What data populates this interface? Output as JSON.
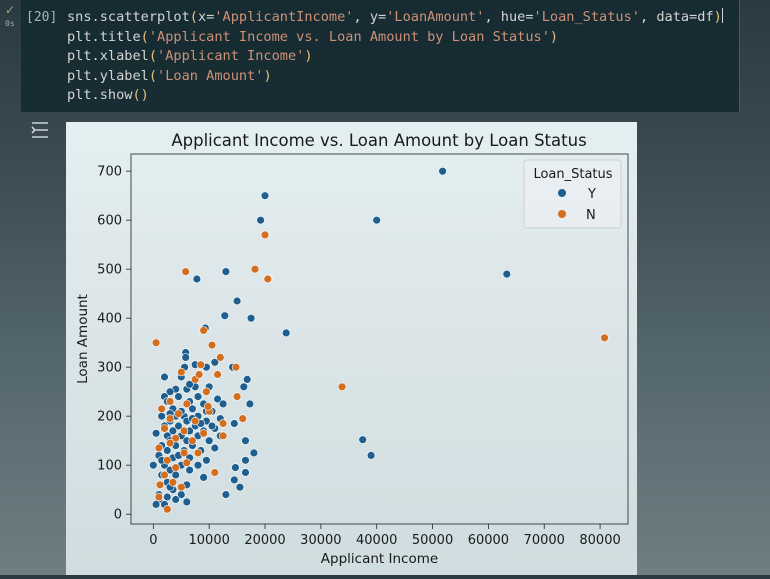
{
  "cell": {
    "exec_count": "[20]",
    "run_status_icon": "check-icon",
    "run_time": "0s",
    "code": {
      "line1": {
        "fn": "sns.scatterplot",
        "a1": "x=",
        "v1": "'ApplicantIncome'",
        "a2": ", y=",
        "v2": "'LoanAmount'",
        "a3": ", hue=",
        "v3": "'Loan_Status'",
        "a4": ", data=df"
      },
      "line2": {
        "fn": "plt.title",
        "v": "'Applicant Income vs. Loan Amount by Loan Status'"
      },
      "line3": {
        "fn": "plt.xlabel",
        "v": "'Applicant Income'"
      },
      "line4": {
        "fn": "plt.ylabel",
        "v": "'Loan Amount'"
      },
      "line5": {
        "fn": "plt.show",
        "v": ""
      }
    }
  },
  "output_toggle_icon": "output-toggle-icon",
  "colors": {
    "Y": "#1f5f8f",
    "N": "#d36e1f"
  },
  "chart_data": {
    "type": "scatter",
    "title": "Applicant Income vs. Loan Amount by Loan Status",
    "xlabel": "Applicant Income",
    "ylabel": "Loan Amount",
    "xlim": [
      -4000,
      85000
    ],
    "ylim": [
      -20,
      735
    ],
    "xticks": [
      0,
      10000,
      20000,
      30000,
      40000,
      50000,
      60000,
      70000,
      80000
    ],
    "yticks": [
      0,
      100,
      200,
      300,
      400,
      500,
      600,
      700
    ],
    "grid": false,
    "legend": {
      "title": "Loan_Status",
      "placement": "top-right"
    },
    "series": [
      {
        "name": "Y",
        "points": [
          [
            51800,
            700
          ],
          [
            20000,
            650
          ],
          [
            40000,
            600
          ],
          [
            19200,
            600
          ],
          [
            63300,
            490
          ],
          [
            13000,
            495
          ],
          [
            20600,
            480
          ],
          [
            7800,
            480
          ],
          [
            15000,
            435
          ],
          [
            23800,
            370
          ],
          [
            17500,
            400
          ],
          [
            12800,
            405
          ],
          [
            9300,
            380
          ],
          [
            5800,
            330
          ],
          [
            5800,
            320
          ],
          [
            5600,
            300
          ],
          [
            9500,
            300
          ],
          [
            11000,
            310
          ],
          [
            14200,
            300
          ],
          [
            16800,
            275
          ],
          [
            16200,
            260
          ],
          [
            4000,
            255
          ],
          [
            6000,
            255
          ],
          [
            7500,
            260
          ],
          [
            10000,
            260
          ],
          [
            3000,
            250
          ],
          [
            2000,
            240
          ],
          [
            4500,
            240
          ],
          [
            8000,
            240
          ],
          [
            11500,
            235
          ],
          [
            2500,
            230
          ],
          [
            6500,
            230
          ],
          [
            9000,
            225
          ],
          [
            12500,
            225
          ],
          [
            17300,
            225
          ],
          [
            3500,
            215
          ],
          [
            7000,
            215
          ],
          [
            10500,
            210
          ],
          [
            1500,
            200
          ],
          [
            4000,
            200
          ],
          [
            5500,
            200
          ],
          [
            8000,
            200
          ],
          [
            12000,
            195
          ],
          [
            3000,
            190
          ],
          [
            6000,
            190
          ],
          [
            9500,
            190
          ],
          [
            14500,
            185
          ],
          [
            2000,
            180
          ],
          [
            4500,
            180
          ],
          [
            7500,
            180
          ],
          [
            11000,
            175
          ],
          [
            3500,
            170
          ],
          [
            6500,
            170
          ],
          [
            9000,
            170
          ],
          [
            500,
            165
          ],
          [
            2500,
            160
          ],
          [
            5000,
            160
          ],
          [
            8000,
            160
          ],
          [
            12000,
            160
          ],
          [
            3000,
            150
          ],
          [
            6000,
            150
          ],
          [
            10000,
            150
          ],
          [
            16500,
            150
          ],
          [
            37500,
            152
          ],
          [
            1500,
            140
          ],
          [
            4000,
            140
          ],
          [
            7000,
            140
          ],
          [
            11000,
            135
          ],
          [
            2500,
            130
          ],
          [
            5500,
            130
          ],
          [
            8500,
            130
          ],
          [
            18000,
            125
          ],
          [
            39000,
            120
          ],
          [
            1000,
            120
          ],
          [
            3500,
            115
          ],
          [
            6500,
            115
          ],
          [
            9500,
            110
          ],
          [
            16500,
            110
          ],
          [
            2000,
            100
          ],
          [
            5000,
            100
          ],
          [
            8000,
            100
          ],
          [
            14700,
            95
          ],
          [
            0,
            100
          ],
          [
            3000,
            90
          ],
          [
            6500,
            90
          ],
          [
            16500,
            85
          ],
          [
            1500,
            80
          ],
          [
            4000,
            80
          ],
          [
            9000,
            75
          ],
          [
            14500,
            70
          ],
          [
            2500,
            65
          ],
          [
            6000,
            60
          ],
          [
            15500,
            55
          ],
          [
            3500,
            50
          ],
          [
            1000,
            40
          ],
          [
            5000,
            40
          ],
          [
            13000,
            40
          ],
          [
            2500,
            35
          ],
          [
            1000,
            30
          ],
          [
            4000,
            30
          ],
          [
            6000,
            25
          ],
          [
            500,
            20
          ],
          [
            2000,
            20
          ],
          [
            3000,
            55
          ],
          [
            1500,
            110
          ],
          [
            4500,
            120
          ],
          [
            7000,
            195
          ],
          [
            9500,
            210
          ],
          [
            5000,
            210
          ],
          [
            3000,
            205
          ],
          [
            8500,
            185
          ],
          [
            10500,
            180
          ],
          [
            6500,
            265
          ],
          [
            5000,
            280
          ],
          [
            2000,
            280
          ],
          [
            8500,
            305
          ],
          [
            7500,
            305
          ]
        ]
      },
      {
        "name": "N",
        "points": [
          [
            80800,
            360
          ],
          [
            20000,
            570
          ],
          [
            18200,
            500
          ],
          [
            5800,
            495
          ],
          [
            20500,
            480
          ],
          [
            33800,
            260
          ],
          [
            500,
            350
          ],
          [
            12000,
            320
          ],
          [
            9000,
            375
          ],
          [
            10500,
            345
          ],
          [
            8500,
            305
          ],
          [
            5000,
            290
          ],
          [
            14800,
            300
          ],
          [
            11500,
            285
          ],
          [
            7500,
            275
          ],
          [
            9500,
            250
          ],
          [
            3000,
            230
          ],
          [
            15000,
            240
          ],
          [
            6000,
            225
          ],
          [
            1500,
            215
          ],
          [
            4500,
            205
          ],
          [
            10000,
            210
          ],
          [
            16000,
            195
          ],
          [
            3000,
            195
          ],
          [
            7500,
            190
          ],
          [
            12500,
            185
          ],
          [
            2000,
            175
          ],
          [
            5500,
            170
          ],
          [
            9000,
            165
          ],
          [
            12500,
            160
          ],
          [
            4000,
            155
          ],
          [
            7000,
            150
          ],
          [
            3000,
            145
          ],
          [
            1000,
            135
          ],
          [
            5500,
            125
          ],
          [
            8000,
            125
          ],
          [
            2500,
            110
          ],
          [
            6000,
            105
          ],
          [
            4000,
            95
          ],
          [
            11000,
            85
          ],
          [
            2000,
            80
          ],
          [
            3500,
            65
          ],
          [
            1200,
            60
          ],
          [
            5000,
            55
          ],
          [
            1000,
            35
          ],
          [
            2500,
            10
          ],
          [
            8200,
            285
          ],
          [
            9800,
            220
          ]
        ]
      }
    ]
  }
}
